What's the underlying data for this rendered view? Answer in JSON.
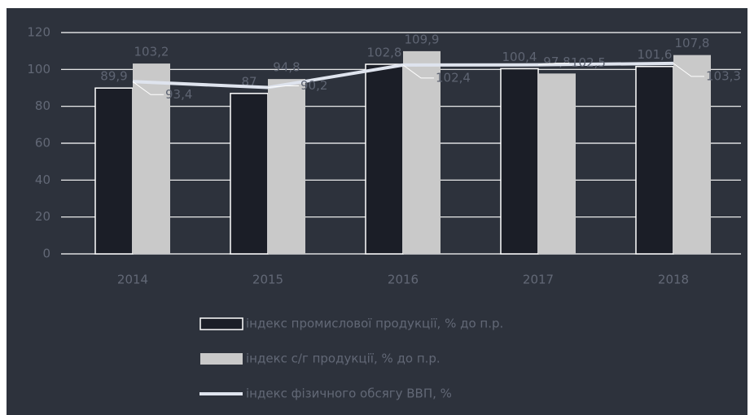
{
  "chart_data": {
    "type": "bar",
    "categories": [
      "2014",
      "2015",
      "2016",
      "2017",
      "2018"
    ],
    "ylim": [
      0,
      120
    ],
    "yticks": [
      0,
      20,
      40,
      60,
      80,
      100,
      120
    ],
    "grid": true,
    "series": [
      {
        "name": "індекс промислової продукції, % до п.р.",
        "color": "#1b1e27",
        "values": [
          89.9,
          87,
          102.8,
          100.4,
          101.6
        ],
        "value_labels": [
          "89,9",
          "87",
          "102,8",
          "100,4",
          "101,6"
        ]
      },
      {
        "name": "індекс с/г продукції, % до п.р.",
        "color": "#c9c9c9",
        "values": [
          103.2,
          94.8,
          109.9,
          97.8,
          107.8
        ],
        "value_labels": [
          "103,2",
          "94,8",
          "109,9",
          "97,8",
          "107,8"
        ]
      },
      {
        "name": "індекс фізичного обсягу ВВП, %",
        "color": "#dfe4ee",
        "type": "line",
        "values": [
          93.4,
          90.2,
          102.4,
          102.5,
          103.3
        ],
        "value_labels": [
          "93,4",
          "90,2",
          "102,4",
          "102,5",
          "103,3"
        ]
      }
    ]
  }
}
